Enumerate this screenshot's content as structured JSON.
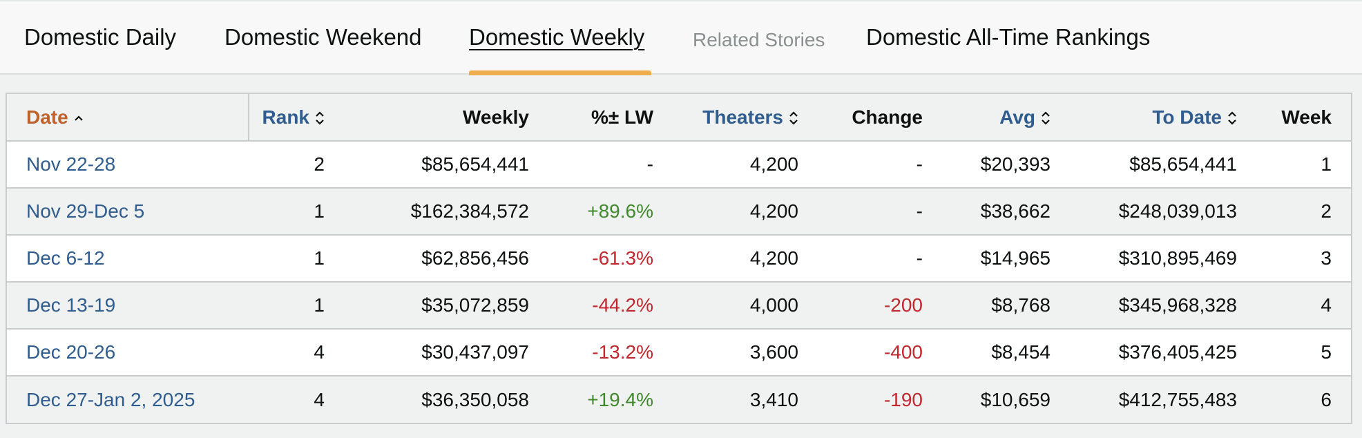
{
  "tabs": [
    {
      "label": "Domestic Daily"
    },
    {
      "label": "Domestic Weekend"
    },
    {
      "label": "Domestic Weekly"
    },
    {
      "label": "Related Stories"
    },
    {
      "label": "Domestic All-Time Rankings"
    }
  ],
  "active_tab": "Domestic Weekly",
  "colors": {
    "link": "#2f5d8f",
    "sorted_header": "#c0622b",
    "positive": "#3f8a2a",
    "negative": "#c1282d",
    "tab_indicator": "#f0ad4e"
  },
  "table": {
    "headers": {
      "date": "Date",
      "rank": "Rank",
      "weekly": "Weekly",
      "pct_lw": "%± LW",
      "theaters": "Theaters",
      "change": "Change",
      "avg": "Avg",
      "to_date": "To Date",
      "week": "Week"
    },
    "icons": {
      "date_sort": "chevron-up-icon",
      "other_sort": "sort-up-down-icon"
    },
    "rows": [
      {
        "date": "Nov 22-28",
        "rank": "2",
        "weekly": "$85,654,441",
        "pct_lw": "-",
        "theaters": "4,200",
        "change": "-",
        "avg": "$20,393",
        "to_date": "$85,654,441",
        "week": "1"
      },
      {
        "date": "Nov 29-Dec 5",
        "rank": "1",
        "weekly": "$162,384,572",
        "pct_lw": "+89.6%",
        "theaters": "4,200",
        "change": "-",
        "avg": "$38,662",
        "to_date": "$248,039,013",
        "week": "2"
      },
      {
        "date": "Dec 6-12",
        "rank": "1",
        "weekly": "$62,856,456",
        "pct_lw": "-61.3%",
        "theaters": "4,200",
        "change": "-",
        "avg": "$14,965",
        "to_date": "$310,895,469",
        "week": "3"
      },
      {
        "date": "Dec 13-19",
        "rank": "1",
        "weekly": "$35,072,859",
        "pct_lw": "-44.2%",
        "theaters": "4,000",
        "change": "-200",
        "avg": "$8,768",
        "to_date": "$345,968,328",
        "week": "4"
      },
      {
        "date": "Dec 20-26",
        "rank": "4",
        "weekly": "$30,437,097",
        "pct_lw": "-13.2%",
        "theaters": "3,600",
        "change": "-400",
        "avg": "$8,454",
        "to_date": "$376,405,425",
        "week": "5"
      },
      {
        "date": "Dec 27-Jan 2, 2025",
        "rank": "4",
        "weekly": "$36,350,058",
        "pct_lw": "+19.4%",
        "theaters": "3,410",
        "change": "-190",
        "avg": "$10,659",
        "to_date": "$412,755,483",
        "week": "6"
      }
    ]
  }
}
